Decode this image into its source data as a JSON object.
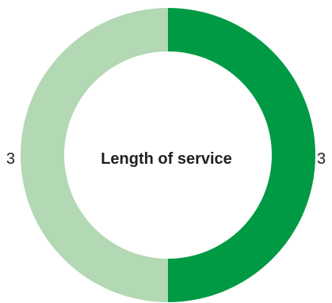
{
  "chart_data": {
    "type": "pie",
    "variant": "donut",
    "title": "Length of service",
    "slices": [
      {
        "value": 3,
        "label": "3",
        "color": "#009a44"
      },
      {
        "value": 3,
        "label": "3",
        "color": "#b3d8b4"
      }
    ]
  }
}
